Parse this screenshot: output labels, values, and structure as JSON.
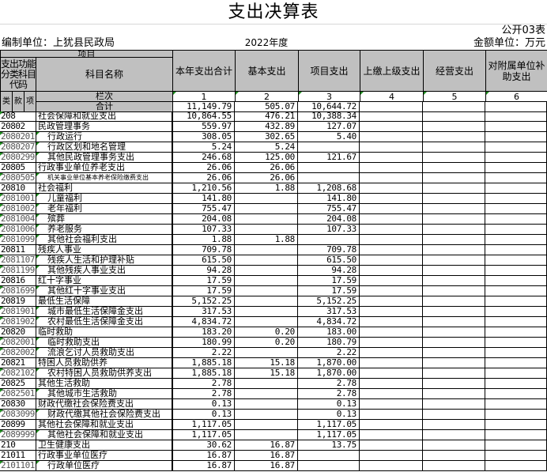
{
  "title": "支出决算表",
  "form_no": "公开03表",
  "unit_label": "编制单位：上犹县民政局",
  "year": "2022年度",
  "money_unit": "金额单位：万元",
  "header": {
    "item": "项目",
    "code_col": "支出功能分类科目代码",
    "name_col": "科目名称",
    "lei": "类",
    "kuan": "款",
    "xiang": "项",
    "lanci": "栏次",
    "total_label": "合计",
    "columns": [
      "本年支出合计",
      "基本支出",
      "项目支出",
      "上缴上级支出",
      "经营支出",
      "对附属单位补助支出"
    ],
    "column_numbers": [
      "1",
      "2",
      "3",
      "4",
      "5",
      "6"
    ]
  },
  "totals": [
    "11,149.79",
    "505.07",
    "10,644.72",
    "",
    "",
    ""
  ],
  "rows": [
    {
      "code": "208",
      "name": "社会保障和就业支出",
      "v": [
        "10,864.55",
        "476.21",
        "10,388.34"
      ]
    },
    {
      "code": "20802",
      "name": "民政管理事务",
      "v": [
        "559.97",
        "432.89",
        "127.07"
      ]
    },
    {
      "code": "2080201",
      "name": "行政运行",
      "v": [
        "308.05",
        "302.65",
        "5.40"
      ]
    },
    {
      "code": "2080207",
      "name": "行政区划和地名管理",
      "v": [
        "5.24",
        "5.24",
        ""
      ]
    },
    {
      "code": "2080299",
      "name": "其他民政管理事务支出",
      "v": [
        "246.68",
        "125.00",
        "121.67"
      ]
    },
    {
      "code": "20805",
      "name": "行政事业单位养老支出",
      "v": [
        "26.06",
        "26.06",
        ""
      ]
    },
    {
      "code": "2080505",
      "name": "机关事业单位基本养老保险缴费支出",
      "v": [
        "26.06",
        "26.06",
        ""
      ]
    },
    {
      "code": "20810",
      "name": "社会福利",
      "v": [
        "1,210.56",
        "1.88",
        "1,208.68"
      ]
    },
    {
      "code": "2081001",
      "name": "儿童福利",
      "v": [
        "141.80",
        "",
        "141.80"
      ]
    },
    {
      "code": "2081002",
      "name": "老年福利",
      "v": [
        "755.47",
        "",
        "755.47"
      ]
    },
    {
      "code": "2081004",
      "name": "殡葬",
      "v": [
        "204.08",
        "",
        "204.08"
      ]
    },
    {
      "code": "2081006",
      "name": "养老服务",
      "v": [
        "107.33",
        "",
        "107.33"
      ]
    },
    {
      "code": "2081099",
      "name": "其他社会福利支出",
      "v": [
        "1.88",
        "1.88",
        ""
      ]
    },
    {
      "code": "20811",
      "name": "残疾人事业",
      "v": [
        "709.78",
        "",
        "709.78"
      ]
    },
    {
      "code": "2081107",
      "name": "残疾人生活和护理补贴",
      "v": [
        "615.50",
        "",
        "615.50"
      ]
    },
    {
      "code": "2081199",
      "name": "其他残疾人事业支出",
      "v": [
        "94.28",
        "",
        "94.28"
      ]
    },
    {
      "code": "20816",
      "name": "红十字事业",
      "v": [
        "17.59",
        "",
        "17.59"
      ]
    },
    {
      "code": "2081699",
      "name": "其他红十字事业支出",
      "v": [
        "17.59",
        "",
        "17.59"
      ]
    },
    {
      "code": "20819",
      "name": "最低生活保障",
      "v": [
        "5,152.25",
        "",
        "5,152.25"
      ]
    },
    {
      "code": "2081901",
      "name": "城市最低生活保障金支出",
      "v": [
        "317.53",
        "",
        "317.53"
      ]
    },
    {
      "code": "2081902",
      "name": "农村最低生活保障金支出",
      "v": [
        "4,834.72",
        "",
        "4,834.72"
      ]
    },
    {
      "code": "20820",
      "name": "临时救助",
      "v": [
        "183.20",
        "0.20",
        "183.00"
      ]
    },
    {
      "code": "2082001",
      "name": "临时救助支出",
      "v": [
        "180.99",
        "0.20",
        "180.79"
      ]
    },
    {
      "code": "2082002",
      "name": "流浪乞讨人员救助支出",
      "v": [
        "2.22",
        "",
        "2.22"
      ]
    },
    {
      "code": "20821",
      "name": "特困人员救助供养",
      "v": [
        "1,885.18",
        "15.18",
        "1,870.00"
      ]
    },
    {
      "code": "2082102",
      "name": "农村特困人员救助供养支出",
      "v": [
        "1,885.18",
        "15.18",
        "1,870.00"
      ]
    },
    {
      "code": "20825",
      "name": "其他生活救助",
      "v": [
        "2.78",
        "",
        "2.78"
      ]
    },
    {
      "code": "2082501",
      "name": "其他城市生活救助",
      "v": [
        "2.78",
        "",
        "2.78"
      ]
    },
    {
      "code": "20830",
      "name": "财政代缴社会保险费支出",
      "v": [
        "0.13",
        "",
        "0.13"
      ]
    },
    {
      "code": "2083099",
      "name": "财政代缴其他社会保险费支出",
      "v": [
        "0.13",
        "",
        "0.13"
      ]
    },
    {
      "code": "20899",
      "name": "其他社会保障和就业支出",
      "v": [
        "1,117.05",
        "",
        "1,117.05"
      ]
    },
    {
      "code": "2089999",
      "name": "其他社会保障和就业支出",
      "v": [
        "1,117.05",
        "",
        "1,117.05"
      ]
    },
    {
      "code": "210",
      "name": "卫生健康支出",
      "v": [
        "30.62",
        "16.87",
        "13.75"
      ]
    },
    {
      "code": "21011",
      "name": "行政事业单位医疗",
      "v": [
        "16.87",
        "16.87",
        ""
      ]
    },
    {
      "code": "2101101",
      "name": "行政单位医疗",
      "v": [
        "16.87",
        "16.87",
        ""
      ]
    }
  ]
}
